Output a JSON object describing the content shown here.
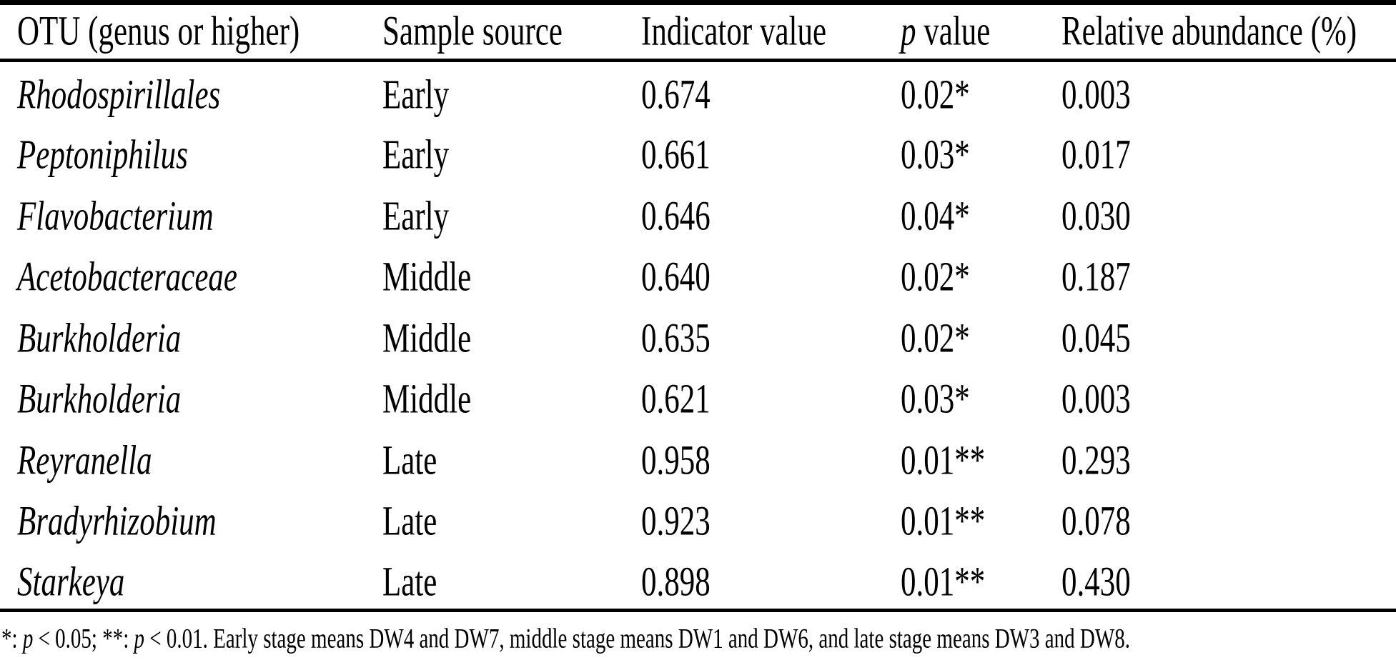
{
  "page": {
    "background": "#ffffff",
    "text_color": "#000000",
    "rule_color": "#000000"
  },
  "table": {
    "columns": [
      {
        "id": "otu",
        "segments": [
          {
            "text": "OTU (genus or higher)"
          }
        ]
      },
      {
        "id": "sample-source",
        "segments": [
          {
            "text": "Sample source"
          }
        ]
      },
      {
        "id": "indicator-value",
        "segments": [
          {
            "text": "Indicator value"
          }
        ]
      },
      {
        "id": "p-value",
        "segments": [
          {
            "text": "p",
            "italic": true
          },
          {
            "text": " value"
          }
        ]
      },
      {
        "id": "relative-abundance",
        "segments": [
          {
            "text": "Relative abundance (%)"
          }
        ]
      }
    ],
    "rows": [
      {
        "cells": [
          {
            "text": "Rhodospirillales",
            "italic": true
          },
          {
            "text": "Early"
          },
          {
            "text": "0.674"
          },
          {
            "text": "0.02*"
          },
          {
            "text": "0.003"
          }
        ]
      },
      {
        "cells": [
          {
            "text": "Peptoniphilus",
            "italic": true
          },
          {
            "text": "Early"
          },
          {
            "text": "0.661"
          },
          {
            "text": "0.03*"
          },
          {
            "text": "0.017"
          }
        ]
      },
      {
        "cells": [
          {
            "text": "Flavobacterium",
            "italic": true
          },
          {
            "text": "Early"
          },
          {
            "text": "0.646"
          },
          {
            "text": "0.04*"
          },
          {
            "text": "0.030"
          }
        ]
      },
      {
        "cells": [
          {
            "text": "Acetobacteraceae",
            "italic": true
          },
          {
            "text": "Middle"
          },
          {
            "text": "0.640"
          },
          {
            "text": "0.02*"
          },
          {
            "text": "0.187"
          }
        ]
      },
      {
        "cells": [
          {
            "text": "Burkholderia",
            "italic": true
          },
          {
            "text": "Middle"
          },
          {
            "text": "0.635"
          },
          {
            "text": "0.02*"
          },
          {
            "text": "0.045"
          }
        ]
      },
      {
        "cells": [
          {
            "text": "Burkholderia",
            "italic": true
          },
          {
            "text": "Middle"
          },
          {
            "text": "0.621"
          },
          {
            "text": "0.03*"
          },
          {
            "text": "0.003"
          }
        ]
      },
      {
        "cells": [
          {
            "text": "Reyranella",
            "italic": true
          },
          {
            "text": "Late"
          },
          {
            "text": "0.958"
          },
          {
            "text": "0.01**"
          },
          {
            "text": "0.293"
          }
        ]
      },
      {
        "cells": [
          {
            "text": "Bradyrhizobium",
            "italic": true
          },
          {
            "text": "Late"
          },
          {
            "text": "0.923"
          },
          {
            "text": "0.01**"
          },
          {
            "text": "0.078"
          }
        ]
      },
      {
        "cells": [
          {
            "text": "Starkeya",
            "italic": true
          },
          {
            "text": "Late"
          },
          {
            "text": "0.898"
          },
          {
            "text": "0.01**"
          },
          {
            "text": "0.430"
          }
        ]
      }
    ],
    "footnote": {
      "segments": [
        {
          "text": "*: "
        },
        {
          "text": "p",
          "italic": true
        },
        {
          "text": " < 0.05; **: "
        },
        {
          "text": "p",
          "italic": true
        },
        {
          "text": " < 0.01. Early stage means DW4 and DW7, middle stage means DW1 and DW6, and late stage means DW3 and DW8."
        }
      ]
    }
  }
}
